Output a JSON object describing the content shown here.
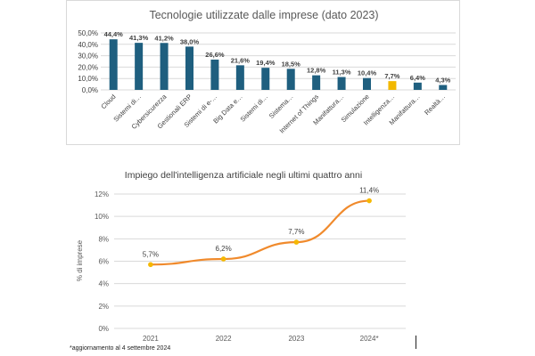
{
  "footnote": "*aggiornamento al 4 settembre 2024",
  "chart_data": [
    {
      "type": "bar",
      "title": "Tecnologie utilizzate dalle imprese (dato 2023)",
      "categories": [
        "Cloud",
        "Sistemi di…",
        "Cybersicurezza",
        "Gestionali ERP",
        "Sistemi di e-…",
        "Big Data e…",
        "Sistemi di…",
        "Sistema…",
        "Internet of Things",
        "Manifattura…",
        "Simulazione",
        "Intelligenza…",
        "Manifattura…",
        "Realtà…"
      ],
      "values": [
        44.4,
        41.3,
        41.2,
        38.0,
        26.6,
        21.6,
        19.4,
        18.5,
        12.8,
        11.3,
        10.4,
        7.7,
        6.4,
        4.3
      ],
      "value_labels": [
        "44,4%",
        "41,3%",
        "41,2%",
        "38,0%",
        "26,6%",
        "21,6%",
        "19,4%",
        "18,5%",
        "12,8%",
        "11,3%",
        "10,4%",
        "7,7%",
        "6,4%",
        "4,3%"
      ],
      "highlight_index": 11,
      "ylim": [
        0,
        50
      ],
      "yticks": [
        "0,0%",
        "10,0%",
        "20,0%",
        "30,0%",
        "40,0%",
        "50,0%"
      ],
      "grid": true,
      "colors": {
        "bar": "#1f5f7f",
        "highlight": "#f2b800",
        "grid": "#d9d9d9",
        "title": "#595959"
      }
    },
    {
      "type": "line",
      "title": "Impiego dell'intelligenza artificiale negli ultimi quattro anni",
      "x": [
        "2021",
        "2022",
        "2023",
        "2024*"
      ],
      "values": [
        5.7,
        6.2,
        7.7,
        11.4
      ],
      "value_labels": [
        "5,7%",
        "6,2%",
        "7,7%",
        "11,4%"
      ],
      "ylabel": "% di imprese",
      "ylim": [
        0,
        12
      ],
      "yticks": [
        "0%",
        "2%",
        "4%",
        "6%",
        "8%",
        "10%",
        "12%"
      ],
      "grid": true,
      "colors": {
        "line": "#f08a2c",
        "marker": "#f5b800",
        "grid": "#d9d9d9",
        "title": "#404040"
      }
    }
  ]
}
